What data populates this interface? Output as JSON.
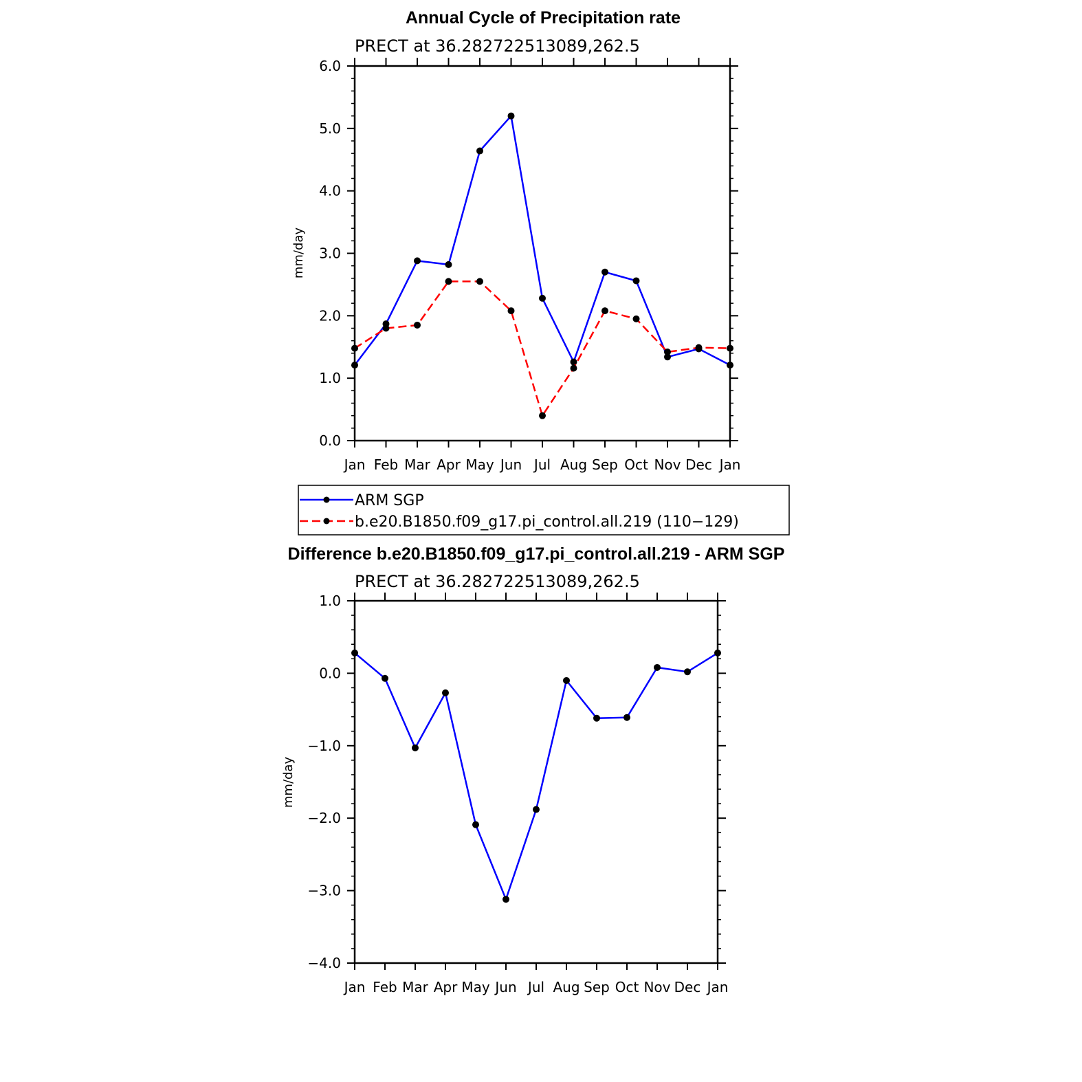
{
  "chart_data": [
    {
      "type": "line",
      "title": "Annual Cycle of Precipitation rate",
      "subtitle": "PRECT at 36.282722513089,262.5",
      "xlabel": "",
      "ylabel": "mm/day",
      "categories": [
        "Jan",
        "Feb",
        "Mar",
        "Apr",
        "May",
        "Jun",
        "Jul",
        "Aug",
        "Sep",
        "Oct",
        "Nov",
        "Dec",
        "Jan"
      ],
      "ylim": [
        0.0,
        6.0
      ],
      "yticks": [
        "0.0",
        "1.0",
        "2.0",
        "3.0",
        "4.0",
        "5.0",
        "6.0"
      ],
      "grid": false,
      "legend_position": "below",
      "series": [
        {
          "name": "ARM SGP",
          "color": "#0000ff",
          "dash": "solid",
          "values": [
            1.21,
            1.87,
            2.88,
            2.82,
            4.64,
            5.2,
            2.28,
            1.26,
            2.7,
            2.56,
            1.34,
            1.47,
            1.21
          ]
        },
        {
          "name": "b.e20.B1850.f09_g17.pi_control.all.219 (110−129)",
          "color": "#ff0000",
          "dash": "dashed",
          "values": [
            1.48,
            1.8,
            1.85,
            2.55,
            2.55,
            2.08,
            0.4,
            1.16,
            2.08,
            1.95,
            1.42,
            1.49,
            1.48
          ]
        }
      ]
    },
    {
      "type": "line",
      "title": "Difference b.e20.B1850.f09_g17.pi_control.all.219 - ARM SGP",
      "subtitle": "PRECT at 36.282722513089,262.5",
      "xlabel": "",
      "ylabel": "mm/day",
      "categories": [
        "Jan",
        "Feb",
        "Mar",
        "Apr",
        "May",
        "Jun",
        "Jul",
        "Aug",
        "Sep",
        "Oct",
        "Nov",
        "Dec",
        "Jan"
      ],
      "ylim": [
        -4.0,
        1.0
      ],
      "yticks": [
        "−4.0",
        "−3.0",
        "−2.0",
        "−1.0",
        "0.0",
        "1.0"
      ],
      "grid": false,
      "series": [
        {
          "color": "#0000ff",
          "dash": "solid",
          "values": [
            0.28,
            -0.07,
            -1.03,
            -0.27,
            -2.09,
            -3.12,
            -1.88,
            -0.1,
            -0.62,
            -0.61,
            0.08,
            0.02,
            0.28
          ]
        }
      ]
    }
  ]
}
